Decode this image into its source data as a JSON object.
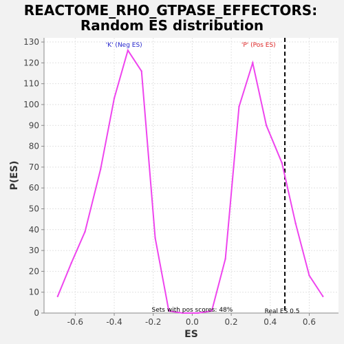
{
  "chart_data": {
    "type": "line",
    "title_line1": "REACTOME_RHO_GTPASE_EFFECTORS:",
    "title_line2": "Random ES distribution",
    "xlabel": "ES",
    "ylabel": "P(ES)",
    "xlim": [
      -0.76,
      0.75
    ],
    "ylim": [
      0,
      132
    ],
    "xticks": [
      -0.6,
      -0.4,
      -0.2,
      0.0,
      0.2,
      0.4,
      0.6
    ],
    "xtick_labels": [
      "-0.6",
      "-0.4",
      "-0.2",
      "0.0",
      "0.2",
      "0.4",
      "0.6"
    ],
    "yticks": [
      0,
      10,
      20,
      30,
      40,
      50,
      60,
      70,
      80,
      90,
      100,
      110,
      120,
      130
    ],
    "ytick_labels": [
      "0",
      "10",
      "20",
      "30",
      "40",
      "50",
      "60",
      "70",
      "80",
      "90",
      "100",
      "110",
      "120",
      "130"
    ],
    "grid": true,
    "series_color": "#ee44ee",
    "series": [
      {
        "x": [
          -0.69,
          -0.62,
          -0.55,
          -0.47,
          -0.4,
          -0.33,
          -0.26,
          -0.19,
          -0.12,
          -0.05,
          0.03,
          0.1,
          0.17,
          0.24,
          0.31,
          0.38,
          0.46,
          0.53,
          0.6,
          0.67
        ],
        "values": [
          8,
          24,
          39,
          69,
          103,
          126,
          116,
          36,
          1,
          0,
          0,
          1,
          26,
          99,
          120,
          90,
          72,
          43,
          18,
          8
        ]
      }
    ],
    "annotations": {
      "neg_label": "'K' (Neg ES)",
      "neg_color": "#2222cc",
      "neg_x": -0.35,
      "pos_label": "'P' (Pos ES)",
      "pos_color": "#dd2222",
      "pos_x": 0.34,
      "sets_text": "Sets with pos scores: 48%",
      "sets_x": 0.0,
      "real_es_label": "Real ES 0.5",
      "real_es_x": 0.475
    }
  }
}
